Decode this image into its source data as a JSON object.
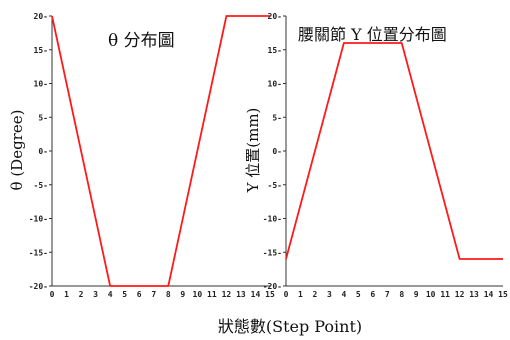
{
  "chart_data": [
    {
      "type": "line",
      "title": "θ 分布圖",
      "ylabel": "θ (Degree)",
      "ylim": [
        -20,
        20
      ],
      "yticks": [
        "20",
        "15",
        "10",
        "5",
        "0",
        "-5",
        "-10",
        "-15",
        "-20"
      ],
      "xlim": [
        0,
        15
      ],
      "xticks": [
        "0",
        "1",
        "2",
        "3",
        "4",
        "5",
        "6",
        "7",
        "8",
        "9",
        "10",
        "11",
        "12",
        "13",
        "14",
        "15"
      ],
      "series": [
        {
          "x": [
            0,
            4,
            8,
            12,
            15
          ],
          "y": [
            20,
            -20,
            -20,
            20,
            20
          ],
          "color": "#ff1a1a"
        }
      ],
      "grid": false
    },
    {
      "type": "line",
      "title": "腰關節 Y 位置分布圖",
      "ylabel": "Y 位置(mm)",
      "ylim": [
        -20,
        20
      ],
      "yticks": [
        "20",
        "15",
        "10",
        "5",
        "0",
        "-5",
        "-10",
        "-15",
        "-20"
      ],
      "xlim": [
        0,
        15
      ],
      "xticks": [
        "0",
        "1",
        "2",
        "3",
        "4",
        "5",
        "6",
        "7",
        "8",
        "9",
        "10",
        "11",
        "12",
        "13",
        "14",
        "15"
      ],
      "series": [
        {
          "x": [
            0,
            4,
            8,
            12,
            15
          ],
          "y": [
            -16,
            16,
            16,
            -16,
            -16
          ],
          "color": "#ff1a1a"
        }
      ],
      "grid": false
    }
  ],
  "shared_xlabel": "狀態數(Step Point)"
}
